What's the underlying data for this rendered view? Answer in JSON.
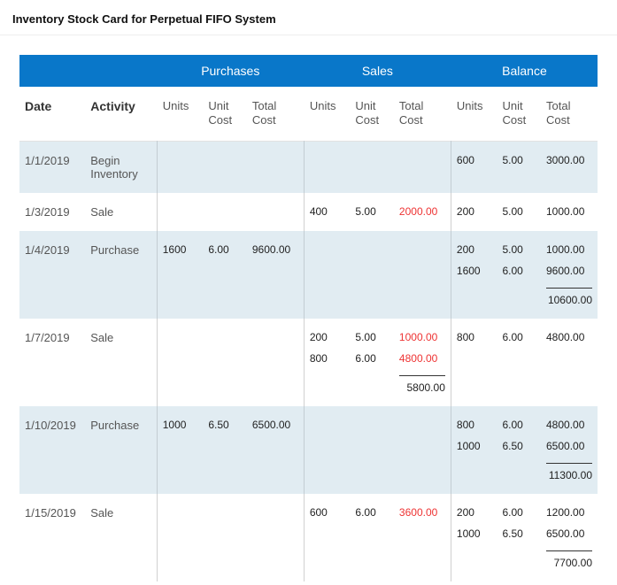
{
  "title": "Inventory Stock Card for Perpetual FIFO System",
  "colors": {
    "header_bg": "#0977c9",
    "header_fg": "#ffffff",
    "shade_bg": "#e1ecf2",
    "sale_red": "#e33"
  },
  "groups": {
    "purchases": "Purchases",
    "sales": "Sales",
    "balance": "Balance"
  },
  "columns": {
    "date": "Date",
    "activity": "Activity",
    "units": "Units",
    "unit_cost": "Unit\nCost",
    "total_cost": "Total\nCost"
  },
  "rows": [
    {
      "shade": true,
      "date": "1/1/2019",
      "activity": "Begin Inventory",
      "purchases": {
        "units": "",
        "unit_cost": "",
        "total_cost": ""
      },
      "sales": {
        "units": "",
        "unit_cost": "",
        "lines": [],
        "subtotal": ""
      },
      "balance": {
        "lines": [
          {
            "units": "600",
            "unit_cost": "5.00",
            "total": "3000.00"
          }
        ],
        "subtotal": ""
      }
    },
    {
      "shade": false,
      "date": "1/3/2019",
      "activity": "Sale",
      "purchases": {
        "units": "",
        "unit_cost": "",
        "total_cost": ""
      },
      "sales": {
        "lines": [
          {
            "units": "400",
            "unit_cost": "5.00",
            "total": "2000.00",
            "red": true
          }
        ],
        "subtotal": ""
      },
      "balance": {
        "lines": [
          {
            "units": "200",
            "unit_cost": "5.00",
            "total": "1000.00"
          }
        ],
        "subtotal": ""
      }
    },
    {
      "shade": true,
      "date": "1/4/2019",
      "activity": "Purchase",
      "purchases": {
        "units": "1600",
        "unit_cost": "6.00",
        "total_cost": "9600.00"
      },
      "sales": {
        "lines": [],
        "subtotal": ""
      },
      "balance": {
        "lines": [
          {
            "units": "200",
            "unit_cost": "5.00",
            "total": "1000.00"
          },
          {
            "units": "1600",
            "unit_cost": "6.00",
            "total": "9600.00"
          }
        ],
        "subtotal": "10600.00"
      }
    },
    {
      "shade": false,
      "date": "1/7/2019",
      "activity": "Sale",
      "purchases": {
        "units": "",
        "unit_cost": "",
        "total_cost": ""
      },
      "sales": {
        "lines": [
          {
            "units": "200",
            "unit_cost": "5.00",
            "total": "1000.00",
            "red": true
          },
          {
            "units": "800",
            "unit_cost": "6.00",
            "total": "4800.00",
            "red": true
          }
        ],
        "subtotal": "5800.00"
      },
      "balance": {
        "lines": [
          {
            "units": "800",
            "unit_cost": "6.00",
            "total": "4800.00"
          }
        ],
        "subtotal": ""
      }
    },
    {
      "shade": true,
      "date": "1/10/2019",
      "activity": "Purchase",
      "purchases": {
        "units": "1000",
        "unit_cost": "6.50",
        "total_cost": "6500.00"
      },
      "sales": {
        "lines": [],
        "subtotal": ""
      },
      "balance": {
        "lines": [
          {
            "units": "800",
            "unit_cost": "6.00",
            "total": "4800.00"
          },
          {
            "units": "1000",
            "unit_cost": "6.50",
            "total": "6500.00"
          }
        ],
        "subtotal": "11300.00"
      }
    },
    {
      "shade": false,
      "date": "1/15/2019",
      "activity": "Sale",
      "purchases": {
        "units": "",
        "unit_cost": "",
        "total_cost": ""
      },
      "sales": {
        "lines": [
          {
            "units": "600",
            "unit_cost": "6.00",
            "total": "3600.00",
            "red": true
          }
        ],
        "subtotal": ""
      },
      "balance": {
        "lines": [
          {
            "units": "200",
            "unit_cost": "6.00",
            "total": "1200.00"
          },
          {
            "units": "1000",
            "unit_cost": "6.50",
            "total": "6500.00"
          }
        ],
        "subtotal": "7700.00"
      }
    }
  ]
}
